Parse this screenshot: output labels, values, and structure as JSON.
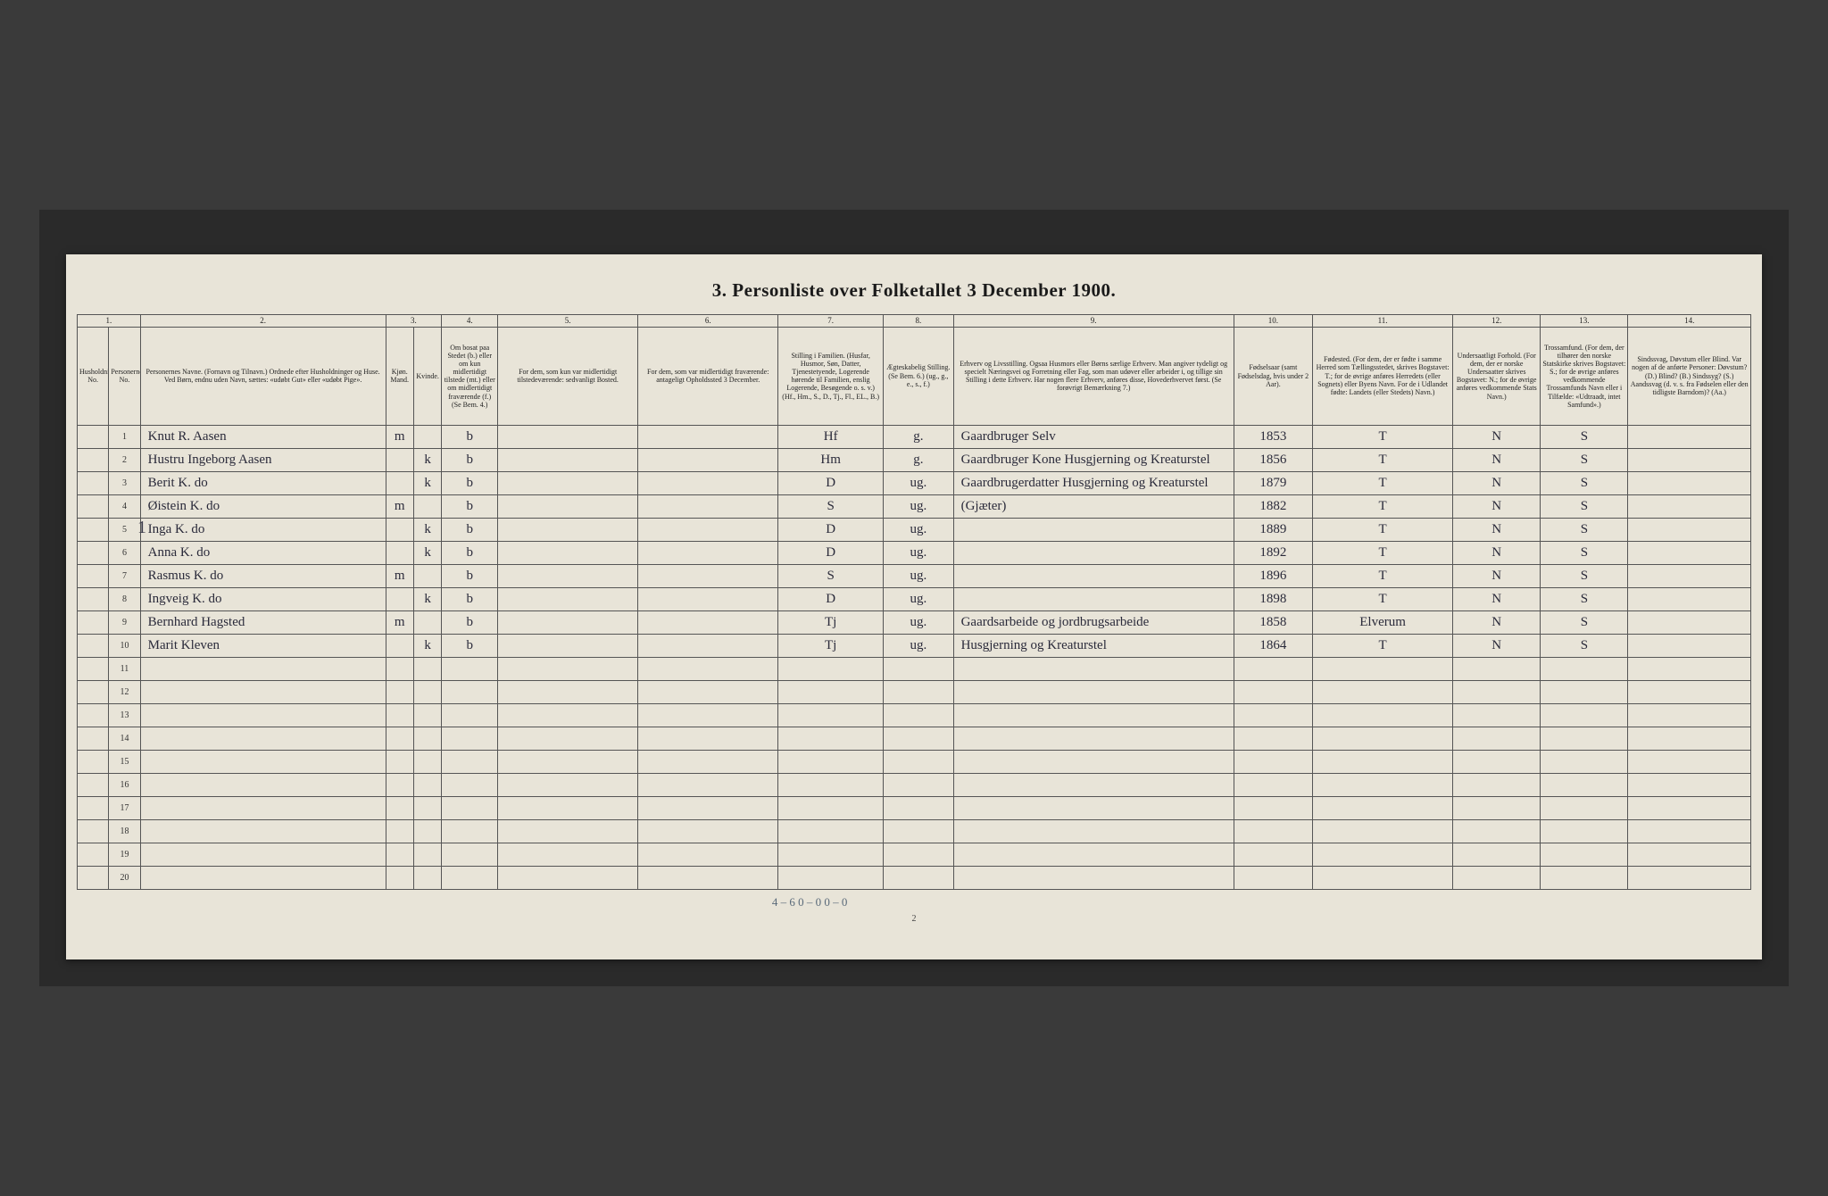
{
  "title": "3. Personliste over Folketallet 3 December 1900.",
  "page_number": "2",
  "household_mark": "1",
  "columns": {
    "nums": [
      "1.",
      "2.",
      "3.",
      "4.",
      "5.",
      "6.",
      "7.",
      "8.",
      "9.",
      "10.",
      "11.",
      "12.",
      "13.",
      "14."
    ],
    "headers": [
      "Husholdningens No.",
      "Personernes No.",
      "Personernes Navne.\n(Fornavn og Tilnavn.)\nOrdnede efter Husholdninger og Huse.\nVed Børn, endnu uden Navn, sættes: «udøbt Gut» eller «udøbt Pige».",
      "Kjøn.\nMand.",
      "Kvinde.",
      "Om bosat paa Stedet (b.) eller om kun midlertidigt tilstede (mt.) eller om midlertidigt fraværende (f.) (Se Bem. 4.)",
      "For dem, som kun var midlertidigt tilstedeværende:\nsedvanligt Bosted.",
      "For dem, som var midlertidigt fraværende:\nantageligt Opholdssted 3 December.",
      "Stilling i Familien.\n(Husfar, Husmor, Søn, Datter, Tjenestetyende, Logerende hørende til Familien, enslig Logerende, Besøgende o. s. v.)\n(Hf., Hm., S., D., Tj., Fl., EL., B.)",
      "Ægteskabelig Stilling.\n(Se Bem. 6.)\n(ug., g., e., s., f.)",
      "Erhverv og Livsstilling.\nOgsaa Husmors eller Børns særlige Erhverv. Man angiver tydeligt og specielt Næringsvei og Forretning eller Fag, som man udøver eller arbeider i, og tillige sin Stilling i dette Erhverv. Har nogen flere Erhverv, anføres disse, Hovederhvervet først.\n(Se forøvrigt Bemærkning 7.)",
      "Fødselsaar (samt Fødselsdag, hvis under 2 Aar).",
      "Fødested.\n(For dem, der er fødte i samme Herred som Tællingsstedet, skrives Bogstavet: T.; for de øvrige anføres Herredets (eller Sognets) eller Byens Navn. For de i Udlandet fødte: Landets (eller Stedets) Navn.)",
      "Undersaatligt Forhold.\n(For dem, der er norske Undersaatter skrives Bogstavet: N.; for de øvrige anføres vedkommende Stats Navn.)",
      "Trossamfund.\n(For dem, der tilhører den norske Statskirke skrives Bogstavet: S.; for de øvrige anføres vedkommende Trossamfunds Navn eller i Tilfælde: «Udtraadt, intet Samfund».)",
      "Sindssvag, Døvstum eller Blind.\nVar nogen af de anførte Personer:\nDøvstum? (D.)\nBlind? (B.)\nSindssyg? (S.)\nAandssvag (d. v. s. fra Fødselen eller den tidligste Barndom)? (Aa.)"
    ]
  },
  "rows": [
    {
      "n": "1",
      "name": "Knut R. Aasen",
      "sex": "m",
      "pres": "b",
      "fam": "Hf",
      "mar": "g.",
      "occ": "Gaardbruger Selv",
      "birth": "1853",
      "bp": "T",
      "nat": "N",
      "rel": "S"
    },
    {
      "n": "2",
      "name": "Hustru Ingeborg Aasen",
      "sex": "k",
      "pres": "b",
      "fam": "Hm",
      "mar": "g.",
      "occ": "Gaardbruger Kone Husgjerning og Kreaturstel",
      "birth": "1856",
      "bp": "T",
      "nat": "N",
      "rel": "S"
    },
    {
      "n": "3",
      "name": "Berit K.        do",
      "sex": "k",
      "pres": "b",
      "fam": "D",
      "mar": "ug.",
      "occ": "Gaardbrugerdatter Husgjerning og Kreaturstel",
      "birth": "1879",
      "bp": "T",
      "nat": "N",
      "rel": "S"
    },
    {
      "n": "4",
      "name": "Øistein K.      do",
      "sex": "m",
      "pres": "b",
      "fam": "S",
      "mar": "ug.",
      "occ": "(Gjæter)",
      "birth": "1882",
      "bp": "T",
      "nat": "N",
      "rel": "S"
    },
    {
      "n": "5",
      "name": "Inga K.         do",
      "sex": "k",
      "pres": "b",
      "fam": "D",
      "mar": "ug.",
      "occ": "",
      "birth": "1889",
      "bp": "T",
      "nat": "N",
      "rel": "S"
    },
    {
      "n": "6",
      "name": "Anna K.         do",
      "sex": "k",
      "pres": "b",
      "fam": "D",
      "mar": "ug.",
      "occ": "",
      "birth": "1892",
      "bp": "T",
      "nat": "N",
      "rel": "S"
    },
    {
      "n": "7",
      "name": "Rasmus K.       do",
      "sex": "m",
      "pres": "b",
      "fam": "S",
      "mar": "ug.",
      "occ": "",
      "birth": "1896",
      "bp": "T",
      "nat": "N",
      "rel": "S"
    },
    {
      "n": "8",
      "name": "Ingveig K.      do",
      "sex": "k",
      "pres": "b",
      "fam": "D",
      "mar": "ug.",
      "occ": "",
      "birth": "1898",
      "bp": "T",
      "nat": "N",
      "rel": "S"
    },
    {
      "n": "9",
      "name": "Bernhard Hagsted",
      "sex": "m",
      "pres": "b",
      "fam": "Tj",
      "mar": "ug.",
      "occ": "Gaardsarbeide og jordbrugsarbeide",
      "birth": "1858",
      "bp": "Elverum",
      "nat": "N",
      "rel": "S"
    },
    {
      "n": "10",
      "name": "Marit Kleven",
      "sex": "k",
      "pres": "b",
      "fam": "Tj",
      "mar": "ug.",
      "occ": "Husgjerning og Kreaturstel",
      "birth": "1864",
      "bp": "T",
      "nat": "N",
      "rel": "S"
    }
  ],
  "empty_rows": [
    "11",
    "12",
    "13",
    "14",
    "15",
    "16",
    "17",
    "18",
    "19",
    "20"
  ],
  "footnote": "4 – 6    0 – 0    0 – 0",
  "colors": {
    "paper": "#e8e4d8",
    "ink": "#1a1a1a",
    "rule": "#555555",
    "handwriting": "#2a2a3a",
    "pencil": "#5a6a7a",
    "backdrop": "#3a3a3a"
  }
}
